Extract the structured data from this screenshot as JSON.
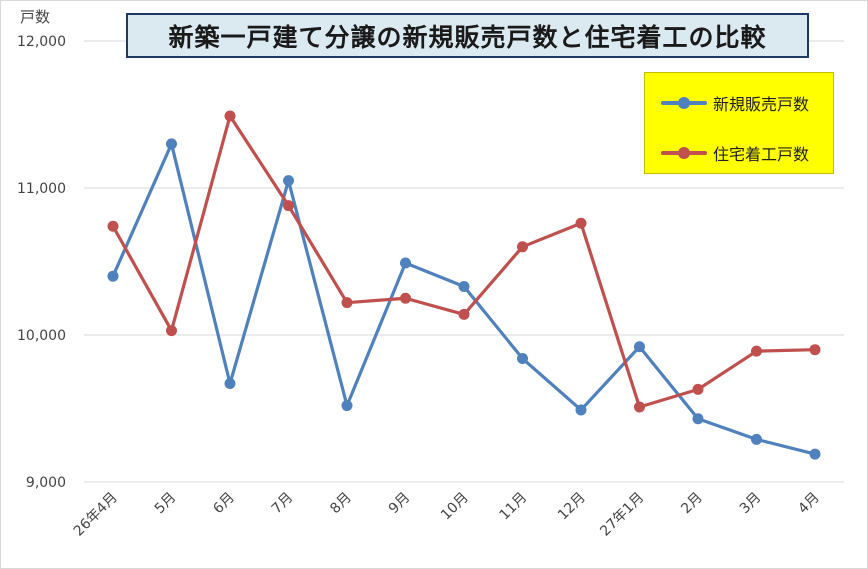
{
  "chart_data": {
    "type": "line",
    "title": "新築一戸建て分譲の新規販売戸数と住宅着工の比較",
    "ylabel": "戸数",
    "xlabel": "",
    "categories": [
      "26年4月",
      "5月",
      "6月",
      "7月",
      "8月",
      "9月",
      "10月",
      "11月",
      "12月",
      "27年1月",
      "2月",
      "3月",
      "4月"
    ],
    "ylim": [
      9000,
      12000
    ],
    "yticks": [
      9000,
      10000,
      11000,
      12000
    ],
    "ytick_labels": [
      "9,000",
      "10,000",
      "11,000",
      "12,000"
    ],
    "grid": true,
    "legend": "top-right",
    "series": [
      {
        "name": "新規販売戸数",
        "color": "#4f81bd",
        "values": [
          10400,
          11300,
          9670,
          11050,
          9520,
          10490,
          10330,
          9840,
          9490,
          9920,
          9430,
          9290,
          9190
        ]
      },
      {
        "name": "住宅着工戸数",
        "color": "#c0504d",
        "values": [
          10740,
          10030,
          11490,
          10880,
          10220,
          10250,
          10140,
          10600,
          10760,
          9510,
          9630,
          9890,
          9900
        ]
      }
    ]
  }
}
